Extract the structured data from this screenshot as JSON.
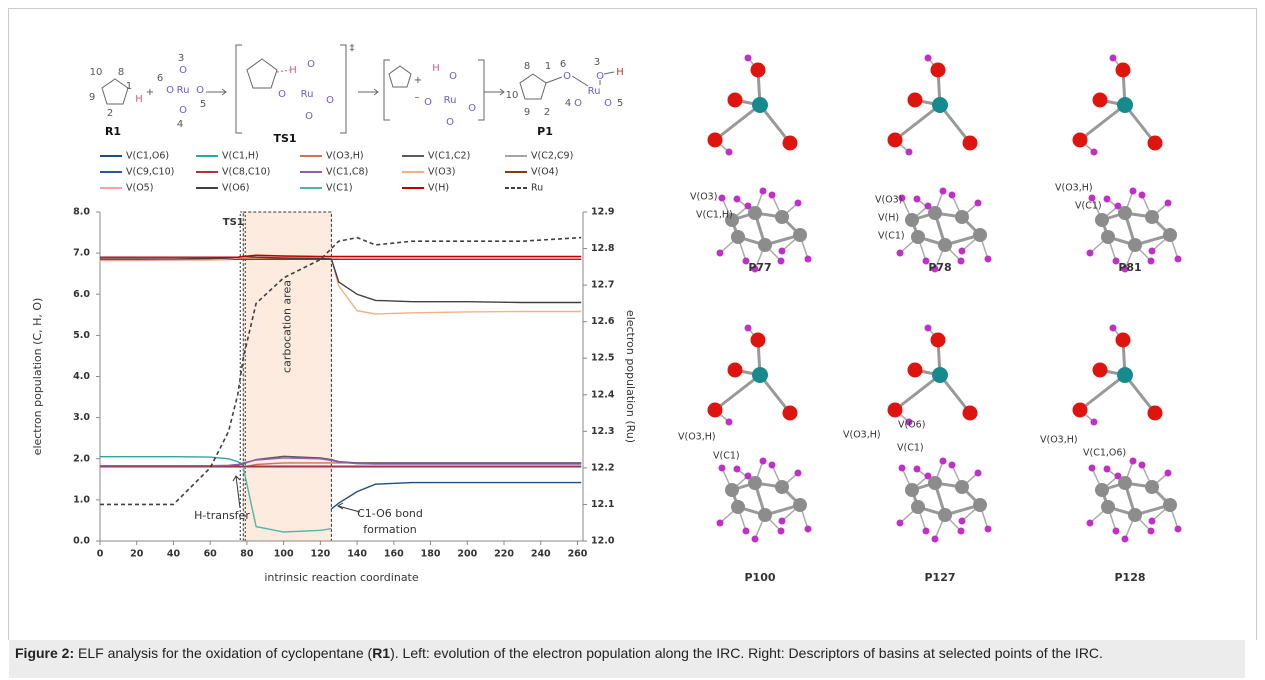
{
  "scheme": {
    "texts": [
      "10",
      "8",
      "9",
      "2",
      "1",
      "H",
      "+",
      "3",
      "6",
      "O",
      "Ru",
      "O",
      "O",
      "5",
      "O",
      "4",
      "R1",
      "H",
      "O",
      "O",
      "Ru",
      "O",
      "O",
      "TS1",
      "‡",
      "+",
      "H",
      "O",
      "–",
      "O",
      "Ru",
      "O",
      "O",
      "8",
      "1",
      "6",
      "O",
      "3",
      "O",
      "H",
      "10",
      "Ru",
      "9",
      "2",
      "4",
      "O",
      "O",
      "5",
      "P1"
    ]
  },
  "chart_data": {
    "type": "line",
    "x": [
      0,
      20,
      40,
      60,
      70,
      75,
      78,
      85,
      100,
      120,
      126,
      130,
      140,
      150,
      170,
      200,
      230,
      262
    ],
    "series": [
      {
        "name": "V(C1,O6)",
        "color": "#1f4e79",
        "values": [
          null,
          null,
          null,
          null,
          null,
          null,
          null,
          null,
          null,
          null,
          0.78,
          0.92,
          1.2,
          1.38,
          1.42,
          1.42,
          1.42,
          1.42
        ]
      },
      {
        "name": "V(C1,H)",
        "color": "#2ca6a4",
        "values": [
          2.05,
          2.05,
          2.05,
          2.04,
          2.0,
          1.93,
          1.85,
          null,
          null,
          null,
          null,
          null,
          null,
          null,
          null,
          null,
          null,
          null
        ]
      },
      {
        "name": "V(O3,H)",
        "color": "#d0705f",
        "values": [
          null,
          null,
          null,
          null,
          null,
          null,
          1.8,
          1.86,
          1.9,
          1.9,
          1.9,
          1.9,
          1.9,
          1.9,
          1.9,
          1.9,
          1.9,
          1.9
        ]
      },
      {
        "name": "V(C1,C2)",
        "color": "#595959",
        "values": [
          1.82,
          1.82,
          1.82,
          1.82,
          1.83,
          1.85,
          1.88,
          1.98,
          2.06,
          2.02,
          1.98,
          1.93,
          1.9,
          1.9,
          1.9,
          1.9,
          1.9,
          1.9
        ]
      },
      {
        "name": "V(C2,C9)",
        "color": "#a5a5a5",
        "values": [
          1.8,
          1.8,
          1.8,
          1.8,
          1.8,
          1.8,
          1.8,
          1.8,
          1.8,
          1.8,
          1.8,
          1.8,
          1.8,
          1.8,
          1.8,
          1.8,
          1.8,
          1.8
        ]
      },
      {
        "name": "V(C9,C10)",
        "color": "#2f5597",
        "values": [
          1.81,
          1.81,
          1.81,
          1.81,
          1.81,
          1.81,
          1.81,
          1.81,
          1.81,
          1.81,
          1.81,
          1.81,
          1.81,
          1.81,
          1.81,
          1.81,
          1.81,
          1.81
        ]
      },
      {
        "name": "V(C8,C10)",
        "color": "#a9373b",
        "values": [
          1.82,
          1.82,
          1.82,
          1.82,
          1.82,
          1.82,
          1.82,
          1.82,
          1.82,
          1.82,
          1.82,
          1.82,
          1.82,
          1.82,
          1.82,
          1.82,
          1.82,
          1.82
        ]
      },
      {
        "name": "V(C1,C8)",
        "color": "#8e5fb0",
        "values": [
          1.83,
          1.83,
          1.83,
          1.83,
          1.84,
          1.86,
          1.9,
          1.97,
          2.02,
          2.0,
          1.96,
          1.92,
          1.88,
          1.87,
          1.87,
          1.87,
          1.87,
          1.87
        ]
      },
      {
        "name": "V(O3)",
        "color": "#f4b183",
        "values": [
          6.83,
          6.83,
          6.83,
          6.83,
          6.84,
          6.86,
          6.88,
          6.88,
          6.87,
          6.87,
          6.85,
          6.2,
          5.6,
          5.52,
          5.55,
          5.57,
          5.58,
          5.58
        ]
      },
      {
        "name": "V(O4)",
        "color": "#843c0c",
        "values": [
          6.85,
          6.85,
          6.85,
          6.85,
          6.85,
          6.85,
          6.85,
          6.85,
          6.85,
          6.85,
          6.85,
          6.85,
          6.85,
          6.85,
          6.85,
          6.85,
          6.85,
          6.85
        ]
      },
      {
        "name": "V(O5)",
        "color": "#f7a1a1",
        "values": [
          6.82,
          6.82,
          6.83,
          6.84,
          6.86,
          6.88,
          6.9,
          6.92,
          6.9,
          6.9,
          6.9,
          6.88,
          6.88,
          6.88,
          6.88,
          6.88,
          6.88,
          6.88
        ]
      },
      {
        "name": "V(O6)",
        "color": "#404040",
        "values": [
          6.86,
          6.86,
          6.86,
          6.87,
          6.88,
          6.9,
          6.92,
          6.9,
          6.88,
          6.87,
          6.86,
          6.3,
          6.0,
          5.85,
          5.82,
          5.82,
          5.8,
          5.8
        ]
      },
      {
        "name": "V(C1)",
        "color": "#4fb8a8",
        "values": [
          null,
          null,
          null,
          null,
          null,
          null,
          1.8,
          0.35,
          0.22,
          0.26,
          0.3,
          null,
          null,
          null,
          null,
          null,
          null,
          null
        ]
      },
      {
        "name": "V(H)",
        "color": "#c00000",
        "values": [
          6.9,
          6.9,
          6.9,
          6.9,
          6.9,
          6.9,
          6.92,
          6.95,
          6.93,
          6.92,
          6.92,
          6.92,
          6.92,
          6.92,
          6.92,
          6.92,
          6.92,
          6.92
        ]
      },
      {
        "name": "Ru",
        "color": "#404040",
        "line_style": "dashed",
        "axis": "y2",
        "values": [
          12.1,
          12.1,
          12.1,
          12.2,
          12.3,
          12.4,
          12.5,
          12.65,
          12.72,
          12.77,
          12.8,
          12.82,
          12.83,
          12.81,
          12.82,
          12.82,
          12.82,
          12.83
        ]
      }
    ],
    "xlim": [
      0,
      263
    ],
    "xticks": [
      0,
      20,
      40,
      60,
      80,
      100,
      120,
      140,
      160,
      180,
      200,
      220,
      240,
      260
    ],
    "ylim": [
      0,
      8
    ],
    "yticks": [
      {
        "value": 0,
        "label": "0.0"
      },
      {
        "value": 1,
        "label": "1.0"
      },
      {
        "value": 2,
        "label": "2.0"
      },
      {
        "value": 3,
        "label": "3.0"
      },
      {
        "value": 4,
        "label": "4.0"
      },
      {
        "value": 5,
        "label": "5.0"
      },
      {
        "value": 6,
        "label": "6.0"
      },
      {
        "value": 7,
        "label": "7.0"
      },
      {
        "value": 8,
        "label": "8.0"
      }
    ],
    "y2lim": [
      12,
      12.9
    ],
    "y2ticks": [
      {
        "value": 12,
        "label": "12.0"
      },
      12.1,
      12.2,
      12.3,
      12.4,
      12.5,
      12.6,
      12.7,
      12.8,
      12.9
    ],
    "xlabel": "intrinsic reaction coordinate",
    "ylabel": "electron population (C, H, O)",
    "y2label": "electron population (Ru)",
    "highlight": [
      78,
      126
    ],
    "annotations": {
      "ts": "TS1",
      "area": "carbocation area",
      "h_transfer": "H-transfer",
      "bond": [
        "C1-O6 bond",
        "formation"
      ]
    }
  },
  "snapshots": [
    {
      "name": "P77",
      "basins": [
        "V(O3)",
        "V(C1,H)"
      ]
    },
    {
      "name": "P78",
      "basins": [
        "V(O3)",
        "V(H)",
        "V(C1)"
      ]
    },
    {
      "name": "P81",
      "basins": [
        "V(O3,H)",
        "V(C1)"
      ]
    },
    {
      "name": "P100",
      "basins": [
        "V(O3,H)",
        "V(C1)"
      ]
    },
    {
      "name": "P127",
      "basins": [
        "V(O6)",
        "V(O3,H)",
        "V(C1)"
      ]
    },
    {
      "name": "P128",
      "basins": [
        "V(O3,H)",
        "V(C1,O6)"
      ]
    }
  ],
  "caption": {
    "label": "Figure 2:",
    "text1": " ELF analysis for the oxidation of cyclopentane (",
    "bold": "R1",
    "text2": "). Left: evolution of the electron population along the IRC. Right: Descriptors of basins at selected points of the IRC."
  }
}
